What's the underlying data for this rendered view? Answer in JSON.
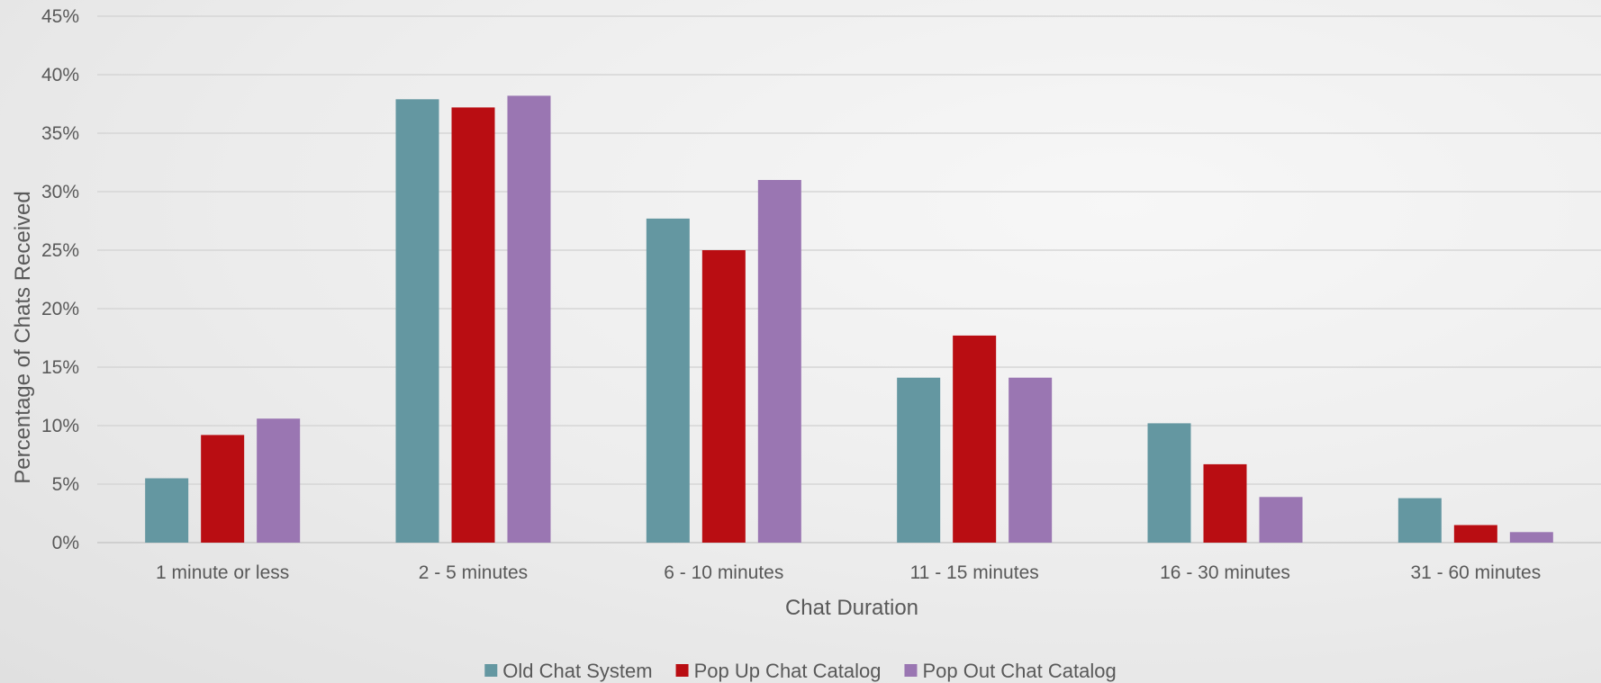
{
  "chart_data": {
    "type": "bar",
    "title": "",
    "xlabel": "Chat Duration",
    "ylabel": "Percentage of Chats Received",
    "categories": [
      "1 minute or less",
      "2 - 5 minutes",
      "6 - 10 minutes",
      "11 - 15 minutes",
      "16 - 30 minutes",
      "31 - 60 minutes"
    ],
    "series": [
      {
        "name": "Old Chat System",
        "color": "#6497a1",
        "values": [
          5.5,
          37.9,
          27.7,
          14.1,
          10.2,
          3.8
        ]
      },
      {
        "name": "Pop Up Chat Catalog",
        "color": "#b90d12",
        "values": [
          9.2,
          37.2,
          25.0,
          17.7,
          6.7,
          1.5
        ]
      },
      {
        "name": "Pop Out Chat Catalog",
        "color": "#9a76b2",
        "values": [
          10.6,
          38.2,
          31.0,
          14.1,
          3.9,
          0.9
        ]
      }
    ],
    "ylim": [
      0,
      45
    ],
    "yticks": [
      0,
      5,
      10,
      15,
      20,
      25,
      30,
      35,
      40,
      45
    ],
    "ytick_format": "%",
    "grid": true,
    "legend_position": "bottom"
  }
}
